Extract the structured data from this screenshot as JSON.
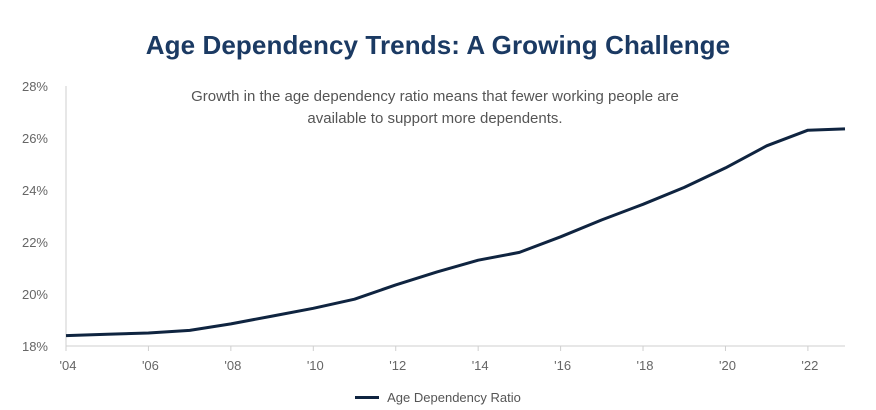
{
  "chart_data": {
    "type": "line",
    "title": "Age Dependency Trends: A Growing Challenge",
    "annotation": [
      "Growth in the age dependency ratio means that fewer working people are",
      "available to support more dependents."
    ],
    "xlabel": "",
    "ylabel": "",
    "x_ticks": [
      "'04",
      "'06",
      "'08",
      "'10",
      "'12",
      "'14",
      "'16",
      "'18",
      "'20",
      "'22"
    ],
    "x_tick_values": [
      2004,
      2006,
      2008,
      2010,
      2012,
      2014,
      2016,
      2018,
      2020,
      2022
    ],
    "y_ticks": [
      "18%",
      "20%",
      "22%",
      "24%",
      "26%",
      "28%"
    ],
    "y_tick_values": [
      18,
      20,
      22,
      24,
      26,
      28
    ],
    "xlim": [
      2004,
      2022.9
    ],
    "ylim": [
      18,
      28
    ],
    "grid": false,
    "legend_position": "bottom-center",
    "series": [
      {
        "name": "Age Dependency Ratio",
        "color": "#0f2440",
        "x": [
          2004,
          2005,
          2006,
          2007,
          2008,
          2009,
          2010,
          2011,
          2012,
          2013,
          2014,
          2015,
          2016,
          2017,
          2018,
          2019,
          2020,
          2021,
          2022,
          2022.9
        ],
        "values": [
          18.4,
          18.45,
          18.5,
          18.6,
          18.85,
          19.15,
          19.45,
          19.8,
          20.35,
          20.85,
          21.3,
          21.6,
          22.2,
          22.85,
          23.45,
          24.1,
          24.85,
          25.7,
          26.3,
          26.35
        ]
      }
    ]
  }
}
